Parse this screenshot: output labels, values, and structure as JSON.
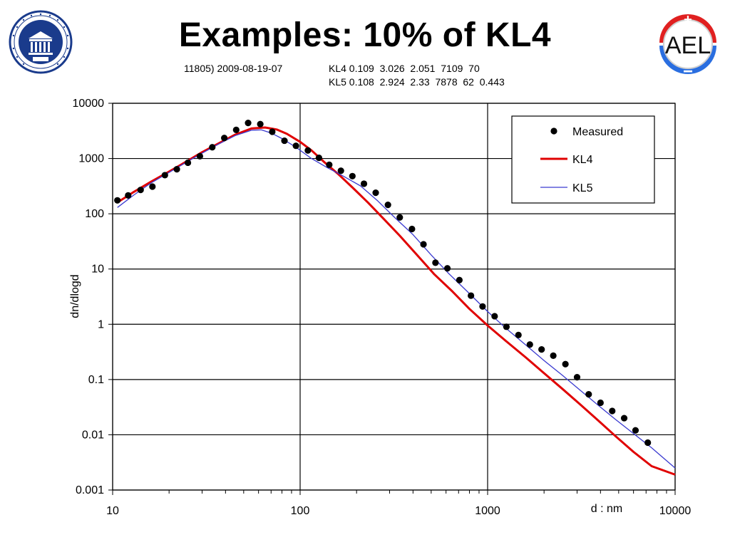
{
  "slide": {
    "title": "Examples: 10% of KL4",
    "info_left": "11805) 2009-08-19-07",
    "info_kl4": "KL4 0.109  3.026  2.051  7109  70",
    "info_kl5": "KL5 0.108  2.924  2.33  7878  62  0.443"
  },
  "logos": {
    "left_university_seal": "UNIVERSITAS TARTUENSIS · TARTU ÜLIKOOL · 1632",
    "right_aelogo": "AEL",
    "right_plus": "+",
    "right_minus": "−"
  },
  "colors": {
    "kl4": "#e00000",
    "kl5": "#3a3ad0",
    "measured": "#000000",
    "seal": "#1a3b8c"
  },
  "chart_data": {
    "type": "scatter",
    "xscale": "log",
    "yscale": "log",
    "xlim": [
      10,
      10000
    ],
    "ylim": [
      0.001,
      10000
    ],
    "xlabel": "d : nm",
    "ylabel": "dn/dlogd",
    "x_ticks": [
      "10",
      "100",
      "1000",
      "10000"
    ],
    "y_ticks": [
      "0.001",
      "0.01",
      "0.1",
      "1",
      "10",
      "100",
      "1000",
      "10000"
    ],
    "grid": true,
    "legend_position": "top-right",
    "series": [
      {
        "name": "Measured",
        "kind": "points",
        "x": [
          10.6,
          12.1,
          14.1,
          16.3,
          19.0,
          22.0,
          25.2,
          29.2,
          34.0,
          39.4,
          45.6,
          52.8,
          61.3,
          71.0,
          82.5,
          95.0,
          110,
          126,
          143,
          165,
          190,
          219,
          253,
          294,
          340,
          395,
          455,
          527,
          610,
          707,
          815,
          940,
          1090,
          1260,
          1460,
          1680,
          1940,
          2240,
          2600,
          3000,
          3460,
          4000,
          4620,
          5350,
          6150,
          7150
        ],
        "y": [
          175,
          215,
          270,
          310,
          500,
          640,
          840,
          1100,
          1600,
          2350,
          3300,
          4400,
          4200,
          3050,
          2100,
          1700,
          1400,
          1030,
          770,
          600,
          480,
          350,
          240,
          145,
          86,
          53,
          28,
          13,
          10.3,
          6.3,
          3.3,
          2.1,
          1.4,
          0.9,
          0.64,
          0.43,
          0.35,
          0.27,
          0.19,
          0.11,
          0.054,
          0.038,
          0.027,
          0.02,
          0.012,
          0.0072
        ]
      },
      {
        "name": "KL4",
        "kind": "line",
        "x": [
          10.6,
          13,
          16,
          20,
          25,
          30,
          37,
          45,
          55,
          65,
          75,
          85,
          100,
          115,
          135,
          160,
          190,
          230,
          280,
          340,
          420,
          520,
          650,
          800,
          1000,
          1250,
          1600,
          2000,
          2500,
          3100,
          3900,
          4800,
          6000,
          7500,
          10000
        ],
        "y": [
          160,
          250,
          380,
          580,
          900,
          1300,
          1900,
          2700,
          3500,
          3650,
          3350,
          2800,
          2000,
          1400,
          850,
          520,
          300,
          160,
          80,
          40,
          18,
          8,
          3.9,
          1.9,
          0.95,
          0.5,
          0.25,
          0.13,
          0.068,
          0.036,
          0.018,
          0.0095,
          0.0049,
          0.0027,
          0.0019
        ]
      },
      {
        "name": "KL5",
        "kind": "line",
        "x": [
          10.6,
          13,
          16,
          20,
          25,
          30,
          37,
          45,
          55,
          62,
          70,
          80,
          95,
          115,
          140,
          170,
          210,
          260,
          320,
          400,
          500,
          620,
          780,
          1000,
          1250,
          1600,
          2000,
          2500,
          3100,
          3900,
          4800,
          6000,
          7500,
          10000
        ],
        "y": [
          130,
          220,
          360,
          560,
          880,
          1250,
          1850,
          2600,
          3250,
          3300,
          2900,
          2300,
          1600,
          1000,
          680,
          480,
          320,
          170,
          85,
          42,
          18,
          8.3,
          3.9,
          1.7,
          0.85,
          0.42,
          0.22,
          0.12,
          0.065,
          0.034,
          0.019,
          0.0105,
          0.0058,
          0.0025
        ]
      }
    ]
  }
}
